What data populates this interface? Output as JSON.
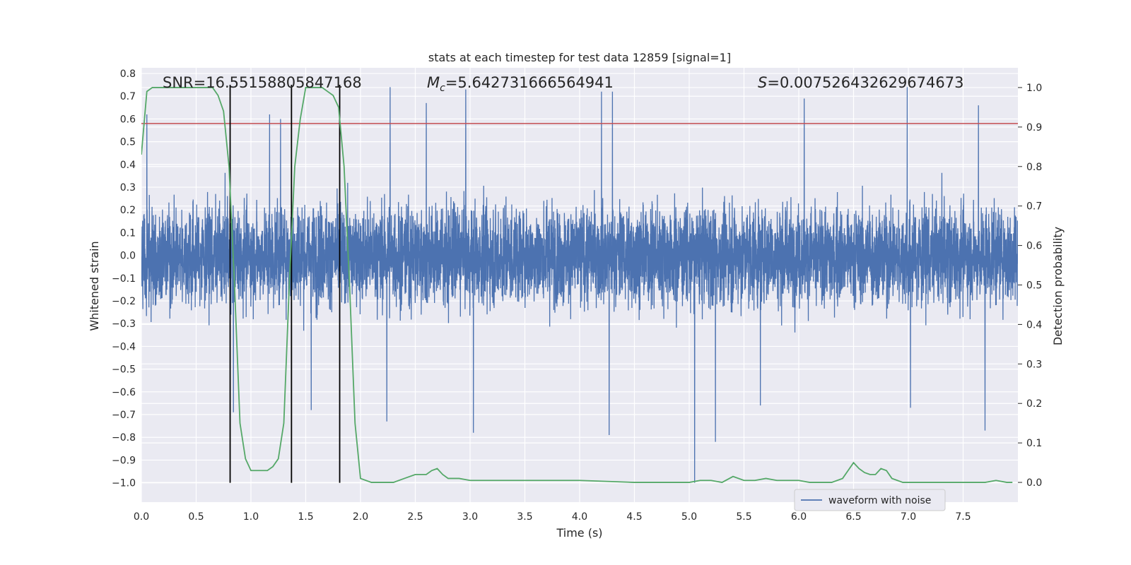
{
  "chart_data": {
    "type": "line",
    "title": "stats at each timestep for test data 12859 [signal=1]",
    "xlabel": "Time (s)",
    "ylabel_left": "Whitened strain",
    "ylabel_right": "Detection probability",
    "xlim": [
      0.0,
      8.0
    ],
    "ylim_left": [
      -1.085,
      0.825
    ],
    "ylim_right": [
      -0.05,
      1.05
    ],
    "x_ticks": [
      "0.0",
      "0.5",
      "1.0",
      "1.5",
      "2.0",
      "2.5",
      "3.0",
      "3.5",
      "4.0",
      "4.5",
      "5.0",
      "5.5",
      "6.0",
      "6.5",
      "7.0",
      "7.5"
    ],
    "left_ticks": [
      "0.8",
      "0.7",
      "0.6",
      "0.5",
      "0.4",
      "0.3",
      "0.2",
      "0.1",
      "0.0",
      "-0.1",
      "-0.2",
      "-0.3",
      "-0.4",
      "-0.5",
      "-0.6",
      "-0.7",
      "-0.8",
      "-0.9",
      "-1.0"
    ],
    "right_ticks": [
      "1.0",
      "0.9",
      "0.8",
      "0.7",
      "0.6",
      "0.5",
      "0.4",
      "0.3",
      "0.2",
      "0.1",
      "0.0"
    ],
    "grid": true,
    "legend_position": "lower-right",
    "annotations": {
      "snr": "SNR=16.55158805847168",
      "mc_symbol": "M",
      "mc_sub": "c",
      "mc_value": "=5.642731666564941",
      "s_symbol": "S",
      "s_value": "=0.007526432629674673"
    },
    "series": [
      {
        "name": "waveform with noise",
        "axis": "left",
        "color": "#4c72b0",
        "kind": "noise-waveform",
        "x_range": [
          0.0,
          8.0
        ],
        "typical_envelope": [
          -0.3,
          0.3
        ],
        "spikes": [
          {
            "x": 2.24,
            "y": -0.73
          },
          {
            "x": 2.27,
            "y": 0.74
          },
          {
            "x": 3.03,
            "y": -0.78
          },
          {
            "x": 4.27,
            "y": -0.79
          },
          {
            "x": 5.05,
            "y": -1.0
          },
          {
            "x": 5.24,
            "y": -0.82
          },
          {
            "x": 5.65,
            "y": -0.66
          },
          {
            "x": 6.99,
            "y": 0.74
          },
          {
            "x": 7.02,
            "y": -0.67
          },
          {
            "x": 7.7,
            "y": -0.77
          },
          {
            "x": 2.6,
            "y": 0.67
          },
          {
            "x": 2.96,
            "y": 0.73
          },
          {
            "x": 4.2,
            "y": 0.72
          },
          {
            "x": 4.3,
            "y": 0.72
          },
          {
            "x": 6.05,
            "y": 0.69
          },
          {
            "x": 7.64,
            "y": 0.66
          },
          {
            "x": 0.05,
            "y": 0.62
          },
          {
            "x": 1.17,
            "y": 0.62
          },
          {
            "x": 1.27,
            "y": 0.6
          },
          {
            "x": 0.84,
            "y": -0.69
          },
          {
            "x": 1.55,
            "y": -0.68
          }
        ]
      },
      {
        "name": "",
        "axis": "right",
        "color": "#55a868",
        "x": [
          0.0,
          0.05,
          0.1,
          0.15,
          0.2,
          0.25,
          0.3,
          0.35,
          0.4,
          0.45,
          0.5,
          0.55,
          0.6,
          0.65,
          0.7,
          0.75,
          0.8,
          0.85,
          0.9,
          0.95,
          1.0,
          1.05,
          1.1,
          1.15,
          1.2,
          1.25,
          1.3,
          1.35,
          1.4,
          1.45,
          1.5,
          1.55,
          1.6,
          1.65,
          1.7,
          1.75,
          1.8,
          1.85,
          1.9,
          1.95,
          2.0,
          2.1,
          2.2,
          2.3,
          2.4,
          2.5,
          2.6,
          2.65,
          2.7,
          2.75,
          2.8,
          2.9,
          3.0,
          3.2,
          3.5,
          4.0,
          4.5,
          5.0,
          5.1,
          5.2,
          5.3,
          5.4,
          5.5,
          5.6,
          5.7,
          5.8,
          5.9,
          6.0,
          6.1,
          6.2,
          6.3,
          6.4,
          6.45,
          6.5,
          6.55,
          6.6,
          6.65,
          6.7,
          6.75,
          6.8,
          6.85,
          6.9,
          6.95,
          7.0,
          7.2,
          7.5,
          7.6,
          7.7,
          7.8,
          7.9,
          7.95
        ],
        "values": [
          0.83,
          0.99,
          1.0,
          1.0,
          1.0,
          1.0,
          1.0,
          1.0,
          1.0,
          1.0,
          1.0,
          1.0,
          1.0,
          1.0,
          0.98,
          0.94,
          0.8,
          0.5,
          0.15,
          0.06,
          0.03,
          0.03,
          0.03,
          0.03,
          0.04,
          0.06,
          0.15,
          0.5,
          0.8,
          0.92,
          1.0,
          1.0,
          1.0,
          1.0,
          0.99,
          0.98,
          0.95,
          0.8,
          0.5,
          0.15,
          0.01,
          0.0,
          0.0,
          0.0,
          0.01,
          0.02,
          0.02,
          0.03,
          0.035,
          0.02,
          0.01,
          0.01,
          0.005,
          0.005,
          0.005,
          0.005,
          0.0,
          0.0,
          0.005,
          0.005,
          0.0,
          0.015,
          0.005,
          0.005,
          0.01,
          0.005,
          0.005,
          0.005,
          0.0,
          0.0,
          0.0,
          0.01,
          0.03,
          0.05,
          0.035,
          0.025,
          0.02,
          0.02,
          0.035,
          0.03,
          0.01,
          0.005,
          0.0,
          0.0,
          0.0,
          0.0,
          0.0,
          0.0,
          0.005,
          0.0,
          0.0
        ]
      }
    ],
    "horizontal_lines": [
      {
        "axis": "left",
        "y": 0.58,
        "color": "#c44e52"
      }
    ],
    "vertical_lines": [
      {
        "x": 0.81,
        "y_from": -1.0,
        "y_to": 0.75,
        "color": "#000000"
      },
      {
        "x": 1.37,
        "y_from": -1.0,
        "y_to": 0.75,
        "color": "#000000"
      },
      {
        "x": 1.81,
        "y_from": -1.0,
        "y_to": 0.75,
        "color": "#000000"
      }
    ]
  }
}
